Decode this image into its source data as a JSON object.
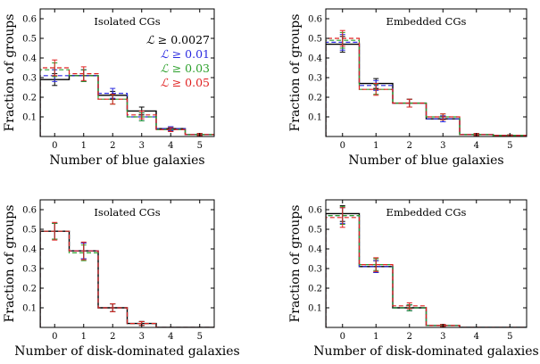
{
  "chart_data": [
    {
      "type": "step",
      "title": "Isolated CGs",
      "xlabel": "Number of blue galaxies",
      "ylabel": "Fraction of groups",
      "xlim": [
        -0.5,
        5.5
      ],
      "ylim": [
        0.0,
        0.65
      ],
      "xticks": [
        "0",
        "1",
        "2",
        "3",
        "4",
        "5"
      ],
      "yticks": [
        "0.1",
        "0.2",
        "0.3",
        "0.4",
        "0.5",
        "0.6"
      ],
      "show_legend": true,
      "series": [
        {
          "name": "L ≥ 0.0027",
          "color": "#000000",
          "dash": "",
          "values": [
            0.29,
            0.31,
            0.21,
            0.13,
            0.04,
            0.01
          ],
          "errors": [
            0.03,
            0.03,
            0.02,
            0.02,
            0.01,
            0.005
          ]
        },
        {
          "name": "L ≥ 0.01",
          "color": "#2a2ae0",
          "dash": "5,3",
          "values": [
            0.31,
            0.31,
            0.22,
            0.1,
            0.04,
            0.01
          ],
          "errors": [
            0.03,
            0.03,
            0.025,
            0.02,
            0.01,
            0.005
          ]
        },
        {
          "name": "L ≥ 0.03",
          "color": "#2ca02c",
          "dash": "5,3",
          "values": [
            0.34,
            0.31,
            0.19,
            0.1,
            0.035,
            0.01
          ],
          "errors": [
            0.035,
            0.03,
            0.025,
            0.02,
            0.01,
            0.005
          ]
        },
        {
          "name": "L ≥ 0.05",
          "color": "#e02020",
          "dash": "5,3",
          "values": [
            0.35,
            0.32,
            0.19,
            0.11,
            0.035,
            0.01
          ],
          "errors": [
            0.04,
            0.035,
            0.025,
            0.02,
            0.01,
            0.005
          ]
        }
      ]
    },
    {
      "type": "step",
      "title": "Embedded CGs",
      "xlabel": "Number of blue galaxies",
      "ylabel": "Fraction of groups",
      "xlim": [
        -0.5,
        5.5
      ],
      "ylim": [
        0.0,
        0.65
      ],
      "xticks": [
        "0",
        "1",
        "2",
        "3",
        "4",
        "5"
      ],
      "yticks": [
        "0.1",
        "0.2",
        "0.3",
        "0.4",
        "0.5",
        "0.6"
      ],
      "show_legend": false,
      "series": [
        {
          "name": "L ≥ 0.0027",
          "color": "#000000",
          "dash": "",
          "values": [
            0.47,
            0.27,
            0.17,
            0.09,
            0.01,
            0.005
          ],
          "errors": [
            0.04,
            0.025,
            0.02,
            0.015,
            0.005,
            0.003
          ]
        },
        {
          "name": "L ≥ 0.01",
          "color": "#2a2ae0",
          "dash": "5,3",
          "values": [
            0.48,
            0.26,
            0.17,
            0.09,
            0.01,
            0.005
          ],
          "errors": [
            0.04,
            0.025,
            0.02,
            0.015,
            0.005,
            0.003
          ]
        },
        {
          "name": "L ≥ 0.03",
          "color": "#2ca02c",
          "dash": "5,3",
          "values": [
            0.49,
            0.24,
            0.17,
            0.1,
            0.01,
            0.005
          ],
          "errors": [
            0.04,
            0.025,
            0.02,
            0.015,
            0.005,
            0.003
          ]
        },
        {
          "name": "L ≥ 0.05",
          "color": "#e02020",
          "dash": "5,3",
          "values": [
            0.5,
            0.24,
            0.17,
            0.1,
            0.01,
            0.005
          ],
          "errors": [
            0.04,
            0.03,
            0.02,
            0.015,
            0.005,
            0.003
          ]
        }
      ]
    },
    {
      "type": "step",
      "title": "Isolated CGs",
      "xlabel": "Number of disk-dominated galaxies",
      "ylabel": "Fraction of groups",
      "xlim": [
        -0.5,
        5.5
      ],
      "ylim": [
        0.0,
        0.65
      ],
      "xticks": [
        "0",
        "1",
        "2",
        "3",
        "4",
        "5"
      ],
      "yticks": [
        "0.1",
        "0.2",
        "0.3",
        "0.4",
        "0.5",
        "0.6"
      ],
      "show_legend": false,
      "series": [
        {
          "name": "L ≥ 0.0027",
          "color": "#000000",
          "dash": "",
          "values": [
            0.49,
            0.39,
            0.1,
            0.02,
            0.0,
            0.0
          ],
          "errors": [
            0.04,
            0.04,
            0.02,
            0.01,
            0.0,
            0.0
          ]
        },
        {
          "name": "L ≥ 0.01",
          "color": "#2a2ae0",
          "dash": "5,3",
          "values": [
            0.49,
            0.39,
            0.1,
            0.02,
            0.0,
            0.0
          ],
          "errors": [
            0.04,
            0.04,
            0.02,
            0.01,
            0.0,
            0.0
          ]
        },
        {
          "name": "L ≥ 0.03",
          "color": "#2ca02c",
          "dash": "5,3",
          "values": [
            0.49,
            0.38,
            0.1,
            0.02,
            0.0,
            0.0
          ],
          "errors": [
            0.04,
            0.04,
            0.02,
            0.01,
            0.0,
            0.0
          ]
        },
        {
          "name": "L ≥ 0.05",
          "color": "#e02020",
          "dash": "5,3",
          "values": [
            0.49,
            0.39,
            0.1,
            0.02,
            0.0,
            0.0
          ],
          "errors": [
            0.045,
            0.045,
            0.02,
            0.01,
            0.0,
            0.0
          ]
        }
      ]
    },
    {
      "type": "step",
      "title": "Embedded CGs",
      "xlabel": "Number of disk-dominated galaxies",
      "ylabel": "Fraction of groups",
      "xlim": [
        -0.5,
        5.5
      ],
      "ylim": [
        0.0,
        0.65
      ],
      "xticks": [
        "0",
        "1",
        "2",
        "3",
        "4",
        "5"
      ],
      "yticks": [
        "0.1",
        "0.2",
        "0.3",
        "0.4",
        "0.5",
        "0.6"
      ],
      "show_legend": false,
      "series": [
        {
          "name": "L ≥ 0.0027",
          "color": "#000000",
          "dash": "",
          "values": [
            0.58,
            0.31,
            0.1,
            0.01,
            0.0,
            0.0
          ],
          "errors": [
            0.04,
            0.03,
            0.015,
            0.005,
            0.0,
            0.0
          ]
        },
        {
          "name": "L ≥ 0.01",
          "color": "#2a2ae0",
          "dash": "5,3",
          "values": [
            0.57,
            0.31,
            0.1,
            0.01,
            0.0,
            0.0
          ],
          "errors": [
            0.04,
            0.03,
            0.015,
            0.005,
            0.0,
            0.0
          ]
        },
        {
          "name": "L ≥ 0.03",
          "color": "#2ca02c",
          "dash": "5,3",
          "values": [
            0.57,
            0.32,
            0.1,
            0.01,
            0.0,
            0.0
          ],
          "errors": [
            0.045,
            0.03,
            0.015,
            0.005,
            0.0,
            0.0
          ]
        },
        {
          "name": "L ≥ 0.05",
          "color": "#e02020",
          "dash": "5,3",
          "values": [
            0.56,
            0.32,
            0.11,
            0.01,
            0.0,
            0.0
          ],
          "errors": [
            0.05,
            0.035,
            0.015,
            0.005,
            0.0,
            0.0
          ]
        }
      ]
    }
  ],
  "legend": {
    "entries": [
      {
        "symbol": "ℒ",
        "text": " ≥ 0.0027",
        "color": "#000000"
      },
      {
        "symbol": "ℒ",
        "text": " ≥ 0.01",
        "color": "#2a2ae0"
      },
      {
        "symbol": "ℒ",
        "text": " ≥ 0.03",
        "color": "#2ca02c"
      },
      {
        "symbol": "ℒ",
        "text": " ≥ 0.05",
        "color": "#e02020"
      }
    ]
  }
}
